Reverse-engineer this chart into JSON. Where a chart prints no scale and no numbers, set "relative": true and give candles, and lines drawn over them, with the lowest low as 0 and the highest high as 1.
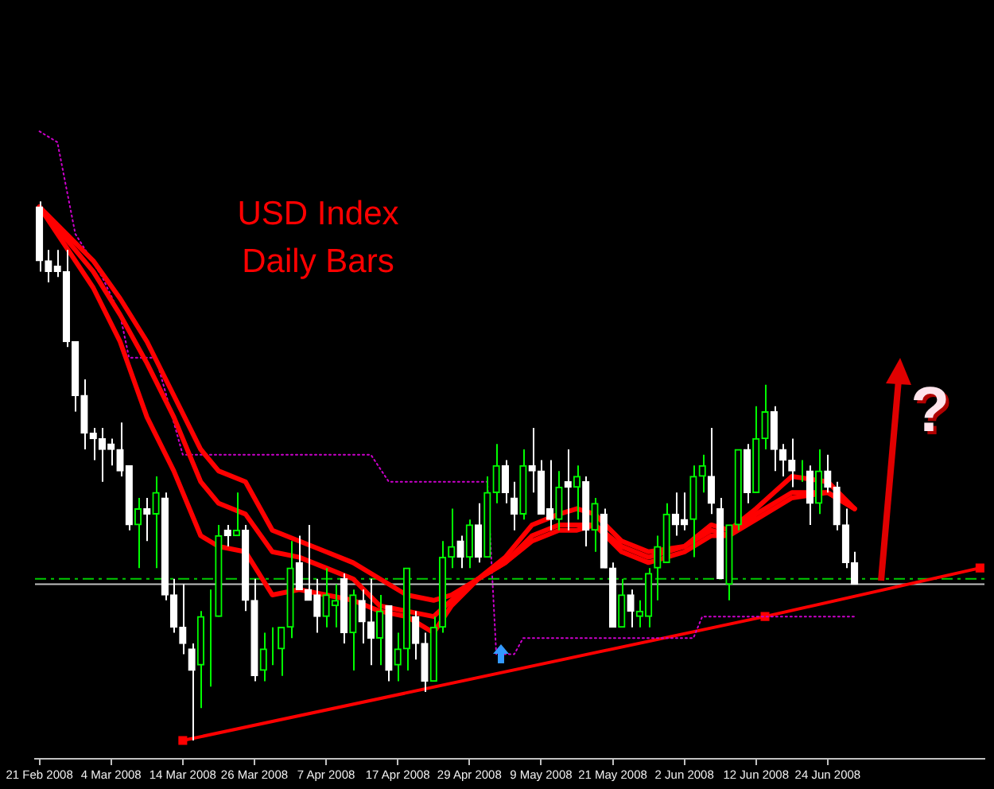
{
  "chart_data": {
    "type": "candlestick",
    "title": "USD Index Daily Bars",
    "relative": true,
    "colors": [
      "#ffffff",
      "#ffffff",
      "#ffffff",
      "#ffffff",
      "#ffffff",
      "#ffffff",
      "#ffffff",
      "#ffffff",
      "#ffffff",
      "#ffffff",
      "#ffffff",
      "#00ff00",
      "#ffffff",
      "#00ff00",
      "#ffffff",
      "#ffffff",
      "#ffffff",
      "#ffffff",
      "#00ff00",
      "#00ff00",
      "#00ff00",
      "#ffffff",
      "#00ff00",
      "#ffffff",
      "#ffffff",
      "#00ff00",
      "#00ff00",
      "#00ff00",
      "#00ff00",
      "#ffffff",
      "#ffffff",
      "#ffffff",
      "#00ff00",
      "#00ff00",
      "#ffffff",
      "#00ff00",
      "#ffffff",
      "#ffffff",
      "#00ff00",
      "#ffffff",
      "#00ff00",
      "#00ff00",
      "#ffffff",
      "#ffffff",
      "#00ff00",
      "#00ff00",
      "#00ff00",
      "#ffffff",
      "#00ff00",
      "#ffffff",
      "#00ff00",
      "#00ff00",
      "#ffffff",
      "#ffffff",
      "#00ff00",
      "#ffffff",
      "#ffffff",
      "#ffffff",
      "#00ff00",
      "#ffffff",
      "#00ff00",
      "#ffffff",
      "#00ff00",
      "#ffffff",
      "#ffffff",
      "#00ff00",
      "#ffffff",
      "#00ff00",
      "#00ff00",
      "#00ff00",
      "#00ff00",
      "#ffffff",
      "#ffffff",
      "#00ff00",
      "#00ff00",
      "#ffffff",
      "#ffffff",
      "#00ff00",
      "#00ff00",
      "#ffffff",
      "#00ff00",
      "#00ff00",
      "#ffffff",
      "#ffffff",
      "#ffffff",
      "#00ff00",
      "#ffffff",
      "#00ff00",
      "#ffffff",
      "#ffffff",
      "#ffffff",
      "#ffffff",
      null,
      null,
      null,
      null,
      null,
      null,
      null,
      null,
      null,
      null,
      null,
      null,
      null,
      null
    ],
    "legend": false,
    "grid": false,
    "tick_labels": "x",
    "categories": [
      "21 Feb 2008",
      null,
      null,
      null,
      null,
      null,
      null,
      null,
      "4 Mar 2008",
      null,
      null,
      null,
      null,
      null,
      null,
      null,
      "14 Mar 2008",
      null,
      null,
      null,
      null,
      null,
      null,
      null,
      "26 Mar 2008",
      null,
      null,
      null,
      null,
      null,
      null,
      null,
      "7 Apr 2008",
      null,
      null,
      null,
      null,
      null,
      null,
      null,
      "17 Apr 2008",
      null,
      null,
      null,
      null,
      null,
      null,
      null,
      "29 Apr 2008",
      null,
      null,
      null,
      null,
      null,
      null,
      null,
      "9 May 2008",
      null,
      null,
      null,
      null,
      null,
      null,
      null,
      "21 May 2008",
      null,
      null,
      null,
      null,
      null,
      null,
      null,
      "2 Jun 2008",
      null,
      null,
      null,
      null,
      null,
      null,
      null,
      "12 Jun 2008",
      null,
      null,
      null,
      null,
      null,
      null,
      null,
      "24 Jun 2008",
      null,
      null,
      null,
      null,
      null,
      null,
      null,
      null,
      null,
      null,
      null,
      null,
      null,
      null,
      null,
      null,
      null
    ],
    "ohlc": [
      [
        0.99,
        1.0,
        0.87,
        0.89
      ],
      [
        0.89,
        0.91,
        0.85,
        0.87
      ],
      [
        0.88,
        0.91,
        0.86,
        0.87
      ],
      [
        0.87,
        0.91,
        0.73,
        0.74
      ],
      [
        0.74,
        0.74,
        0.61,
        0.64
      ],
      [
        0.64,
        0.67,
        0.54,
        0.57
      ],
      [
        0.57,
        0.58,
        0.52,
        0.56
      ],
      [
        0.56,
        0.58,
        0.48,
        0.54
      ],
      [
        0.55,
        0.56,
        0.51,
        0.54
      ],
      [
        0.54,
        0.59,
        0.49,
        0.5
      ],
      [
        0.51,
        0.51,
        0.39,
        0.4
      ],
      [
        0.4,
        0.45,
        0.32,
        0.43
      ],
      [
        0.43,
        0.45,
        0.37,
        0.42
      ],
      [
        0.42,
        0.49,
        0.32,
        0.46
      ],
      [
        0.45,
        0.46,
        0.26,
        0.27
      ],
      [
        0.27,
        0.3,
        0.2,
        0.21
      ],
      [
        0.21,
        0.29,
        0.16,
        0.18
      ],
      [
        0.17,
        0.18,
        0.0,
        0.13
      ],
      [
        0.14,
        0.24,
        0.06,
        0.23
      ],
      [
        0.23,
        0.28,
        0.1,
        0.23
      ],
      [
        0.23,
        0.4,
        0.23,
        0.38
      ],
      [
        0.39,
        0.4,
        0.36,
        0.38
      ],
      [
        0.38,
        0.46,
        0.38,
        0.39
      ],
      [
        0.39,
        0.4,
        0.24,
        0.26
      ],
      [
        0.26,
        0.3,
        0.11,
        0.12
      ],
      [
        0.13,
        0.2,
        0.11,
        0.17
      ],
      [
        0.17,
        0.21,
        0.14,
        0.17
      ],
      [
        0.17,
        0.21,
        0.12,
        0.21
      ],
      [
        0.21,
        0.37,
        0.19,
        0.32
      ],
      [
        0.33,
        0.38,
        0.28,
        0.28
      ],
      [
        0.28,
        0.4,
        0.26,
        0.26
      ],
      [
        0.27,
        0.3,
        0.2,
        0.23
      ],
      [
        0.23,
        0.32,
        0.21,
        0.27
      ],
      [
        0.25,
        0.29,
        0.21,
        0.26
      ],
      [
        0.3,
        0.31,
        0.18,
        0.2
      ],
      [
        0.2,
        0.28,
        0.13,
        0.27
      ],
      [
        0.26,
        0.28,
        0.18,
        0.22
      ],
      [
        0.22,
        0.3,
        0.14,
        0.19
      ],
      [
        0.19,
        0.27,
        0.14,
        0.24
      ],
      [
        0.25,
        0.25,
        0.11,
        0.13
      ],
      [
        0.14,
        0.2,
        0.11,
        0.17
      ],
      [
        0.17,
        0.32,
        0.13,
        0.32
      ],
      [
        0.23,
        0.24,
        0.15,
        0.18
      ],
      [
        0.18,
        0.2,
        0.09,
        0.11
      ],
      [
        0.11,
        0.23,
        0.11,
        0.21
      ],
      [
        0.21,
        0.37,
        0.2,
        0.34
      ],
      [
        0.34,
        0.43,
        0.32,
        0.36
      ],
      [
        0.37,
        0.38,
        0.32,
        0.34
      ],
      [
        0.34,
        0.41,
        0.32,
        0.4
      ],
      [
        0.4,
        0.44,
        0.33,
        0.34
      ],
      [
        0.34,
        0.49,
        0.34,
        0.46
      ],
      [
        0.46,
        0.55,
        0.44,
        0.51
      ],
      [
        0.51,
        0.52,
        0.44,
        0.46
      ],
      [
        0.45,
        0.48,
        0.39,
        0.42
      ],
      [
        0.42,
        0.54,
        0.41,
        0.51
      ],
      [
        0.51,
        0.58,
        0.46,
        0.5
      ],
      [
        0.5,
        0.52,
        0.42,
        0.42
      ],
      [
        0.43,
        0.52,
        0.39,
        0.41
      ],
      [
        0.41,
        0.5,
        0.39,
        0.47
      ],
      [
        0.48,
        0.54,
        0.39,
        0.47
      ],
      [
        0.47,
        0.51,
        0.41,
        0.49
      ],
      [
        0.48,
        0.49,
        0.36,
        0.39
      ],
      [
        0.39,
        0.45,
        0.35,
        0.44
      ],
      [
        0.42,
        0.43,
        0.32,
        0.32
      ],
      [
        0.32,
        0.33,
        0.21,
        0.21
      ],
      [
        0.21,
        0.3,
        0.21,
        0.27
      ],
      [
        0.27,
        0.28,
        0.21,
        0.24
      ],
      [
        0.23,
        0.26,
        0.21,
        0.24
      ],
      [
        0.23,
        0.32,
        0.21,
        0.31
      ],
      [
        0.32,
        0.38,
        0.26,
        0.36
      ],
      [
        0.33,
        0.44,
        0.33,
        0.42
      ],
      [
        0.42,
        0.46,
        0.38,
        0.4
      ],
      [
        0.41,
        0.46,
        0.39,
        0.4
      ],
      [
        0.41,
        0.51,
        0.34,
        0.49
      ],
      [
        0.49,
        0.53,
        0.46,
        0.51
      ],
      [
        0.49,
        0.58,
        0.42,
        0.44
      ],
      [
        0.43,
        0.45,
        0.3,
        0.3
      ],
      [
        0.29,
        0.4,
        0.26,
        0.4
      ],
      [
        0.4,
        0.54,
        0.39,
        0.54
      ],
      [
        0.54,
        0.55,
        0.44,
        0.46
      ],
      [
        0.46,
        0.62,
        0.46,
        0.56
      ],
      [
        0.56,
        0.66,
        0.54,
        0.61
      ],
      [
        0.61,
        0.62,
        0.5,
        0.54
      ],
      [
        0.54,
        0.55,
        0.49,
        0.52
      ],
      [
        0.52,
        0.56,
        0.47,
        0.5
      ],
      [
        0.5,
        0.52,
        0.48,
        0.5
      ],
      [
        0.5,
        0.51,
        0.4,
        0.44
      ],
      [
        0.44,
        0.54,
        0.42,
        0.5
      ],
      [
        0.5,
        0.53,
        0.46,
        0.47
      ],
      [
        0.47,
        0.48,
        0.39,
        0.4
      ],
      [
        0.4,
        0.43,
        0.32,
        0.33
      ],
      [
        0.33,
        0.35,
        0.29,
        0.29
      ],
      null,
      null,
      null,
      null,
      null,
      null,
      null,
      null,
      null,
      null,
      null,
      null,
      null,
      null
    ],
    "series": [
      {
        "type": "line",
        "color": "#ff0000",
        "values": [
          0.99,
          null,
          null,
          null,
          null,
          null,
          0.84,
          null,
          null,
          0.74,
          null,
          null,
          0.6,
          null,
          null,
          0.5,
          null,
          null,
          0.38,
          null,
          0.36,
          null,
          null,
          0.35,
          null,
          null,
          0.27,
          null,
          null,
          0.28,
          null,
          null,
          0.27,
          null,
          null,
          0.26,
          null,
          null,
          0.24,
          null,
          null,
          0.23,
          null,
          null,
          0.2,
          null,
          0.25,
          null,
          null,
          0.3,
          null,
          null,
          0.33,
          null,
          null,
          0.37,
          null,
          null,
          0.39,
          null,
          0.39,
          null,
          0.4,
          null,
          null,
          0.35,
          null,
          null,
          0.33,
          null,
          null,
          null,
          0.35,
          null,
          null,
          0.38,
          null,
          0.38,
          null,
          null,
          0.41,
          null,
          null,
          null,
          0.45,
          null,
          null,
          null,
          0.46,
          null,
          null,
          0.43,
          null,
          null,
          null,
          null,
          null,
          null,
          null,
          null,
          null,
          null,
          null,
          null,
          null,
          null
        ]
      },
      {
        "type": "line",
        "color": "#ff0000",
        "values": [
          0.99,
          null,
          null,
          null,
          null,
          null,
          0.87,
          null,
          null,
          0.79,
          null,
          null,
          0.7,
          null,
          null,
          0.6,
          null,
          null,
          0.48,
          null,
          0.44,
          null,
          null,
          0.42,
          null,
          null,
          0.35,
          null,
          null,
          0.34,
          null,
          null,
          0.32,
          null,
          null,
          0.3,
          null,
          null,
          0.25,
          null,
          null,
          0.24,
          null,
          null,
          0.23,
          null,
          0.26,
          null,
          null,
          0.3,
          null,
          null,
          0.33,
          null,
          null,
          0.38,
          null,
          null,
          0.4,
          null,
          0.4,
          null,
          0.4,
          null,
          null,
          0.36,
          null,
          null,
          0.34,
          null,
          null,
          null,
          0.36,
          null,
          null,
          0.39,
          null,
          0.38,
          null,
          null,
          0.42,
          null,
          null,
          null,
          0.46,
          null,
          null,
          null,
          0.46,
          null,
          null,
          0.43,
          null,
          null,
          null,
          null,
          null,
          null,
          null,
          null,
          null,
          null,
          null,
          null,
          null,
          null
        ]
      },
      {
        "type": "line",
        "color": "#ff0000",
        "values": [
          0.99,
          null,
          null,
          null,
          null,
          null,
          0.89,
          null,
          null,
          0.82,
          null,
          null,
          0.74,
          null,
          null,
          0.64,
          null,
          null,
          0.54,
          null,
          0.5,
          null,
          null,
          0.48,
          null,
          null,
          0.39,
          null,
          null,
          0.37,
          null,
          null,
          0.35,
          null,
          null,
          0.33,
          null,
          null,
          0.3,
          null,
          null,
          0.27,
          null,
          null,
          0.26,
          null,
          0.27,
          null,
          null,
          0.3,
          null,
          null,
          0.34,
          null,
          null,
          0.4,
          null,
          null,
          0.42,
          null,
          0.43,
          null,
          0.42,
          null,
          null,
          0.37,
          null,
          null,
          0.35,
          null,
          null,
          null,
          0.36,
          null,
          null,
          0.4,
          null,
          0.39,
          null,
          null,
          0.43,
          null,
          null,
          null,
          0.49,
          null,
          null,
          null,
          0.48,
          null,
          null,
          0.43,
          null,
          null,
          null,
          null,
          null,
          null,
          null,
          null,
          null,
          null,
          null,
          null,
          null,
          null
        ]
      },
      {
        "type": "line",
        "color": "#cc00cc",
        "line_style": "dotted",
        "values": [
          1.13,
          null,
          1.11,
          null,
          0.94,
          null,
          null,
          0.86,
          null,
          0.79,
          0.71,
          null,
          null,
          0.71,
          null,
          null,
          0.53,
          null,
          null,
          null,
          null,
          null,
          null,
          null,
          null,
          null,
          null,
          null,
          null,
          null,
          null,
          null,
          null,
          null,
          null,
          null,
          null,
          0.53,
          null,
          0.48,
          null,
          null,
          null,
          null,
          null,
          null,
          null,
          null,
          null,
          null,
          0.48,
          0.16,
          null,
          0.16,
          0.19,
          null,
          null,
          null,
          null,
          null,
          null,
          null,
          null,
          null,
          null,
          null,
          null,
          null,
          null,
          null,
          null,
          null,
          null,
          0.19,
          0.23,
          null,
          null,
          null,
          null,
          null,
          null,
          null,
          null,
          null,
          null,
          null,
          null,
          null,
          null,
          null,
          null,
          0.23,
          null,
          null,
          null,
          null,
          null,
          null,
          null,
          null,
          null,
          null,
          null,
          null,
          null,
          null
        ]
      },
      {
        "type": "line",
        "color": "#ff0000",
        "marker": "square",
        "values": [
          null,
          null,
          null,
          null,
          null,
          null,
          null,
          null,
          null,
          null,
          null,
          null,
          null,
          null,
          null,
          null,
          0.0,
          null,
          null,
          null,
          null,
          null,
          null,
          null,
          null,
          null,
          null,
          null,
          null,
          null,
          null,
          null,
          null,
          null,
          null,
          null,
          null,
          null,
          null,
          null,
          null,
          null,
          null,
          null,
          null,
          null,
          null,
          null,
          null,
          null,
          null,
          null,
          null,
          null,
          null,
          null,
          null,
          null,
          null,
          null,
          null,
          null,
          null,
          null,
          null,
          null,
          null,
          null,
          null,
          null,
          null,
          null,
          null,
          null,
          null,
          null,
          null,
          null,
          null,
          null,
          null,
          0.23,
          null,
          null,
          null,
          null,
          null,
          null,
          null,
          null,
          null,
          null,
          null,
          null,
          null,
          null,
          null,
          null,
          null,
          null,
          null,
          null,
          null,
          null,
          null,
          0.32
        ]
      }
    ],
    "ref_lines": [
      {
        "axis": "y",
        "value": 0.3,
        "color": "#00cc00",
        "line_style": "dashed"
      },
      {
        "axis": "y",
        "value": 0.29,
        "color": "#c0c0c0"
      }
    ],
    "annotations": [
      {
        "text": "?",
        "y": 0.29
      }
    ]
  }
}
